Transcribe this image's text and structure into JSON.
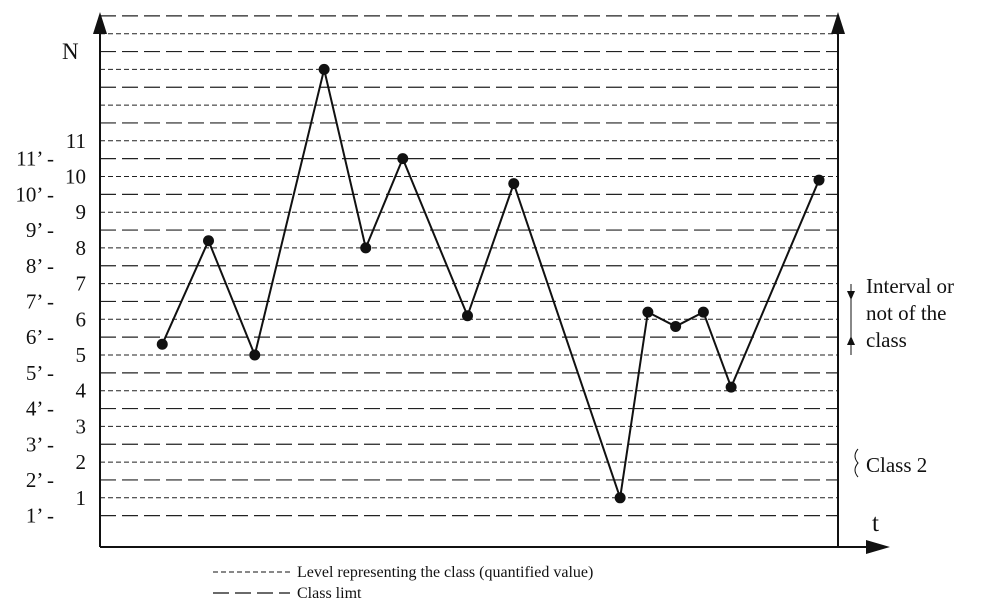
{
  "chart_data": {
    "type": "line",
    "title": "",
    "xlabel": "t",
    "ylabel": "N",
    "ylim": [
      0,
      14
    ],
    "grid": true,
    "y_ticks_class": [
      "1",
      "2",
      "3",
      "4",
      "5",
      "6",
      "7",
      "8",
      "9",
      "10",
      "11"
    ],
    "y_ticks_limit": [
      "1’ -",
      "2’ -",
      "3’ -",
      "4’ -",
      "5’ -",
      "6’ -",
      "7’ -",
      "8’ -",
      "9’ -",
      "10’ -",
      "11’ -"
    ],
    "class_levels": [
      1,
      2,
      3,
      4,
      5,
      6,
      7,
      8,
      9,
      10,
      11,
      12,
      13,
      14
    ],
    "class_limits": [
      0.5,
      1.5,
      2.5,
      3.5,
      4.5,
      5.5,
      6.5,
      7.5,
      8.5,
      9.5,
      10.5,
      11.5,
      12.5,
      13.5,
      14.5
    ],
    "series": [
      {
        "x": [
          1,
          2,
          3,
          4,
          5,
          6,
          7,
          8,
          9,
          10,
          11,
          12,
          13,
          14,
          15
        ],
        "values": [
          5.3,
          8.2,
          5.0,
          13.0,
          8.0,
          10.5,
          6.1,
          9.8,
          1.0,
          6.2,
          5.8,
          6.2,
          4.1,
          9.9,
          null
        ]
      }
    ],
    "series_x_positions": [
      1,
      2,
      3,
      4.5,
      5.4,
      6.2,
      7.6,
      8.6,
      10.9,
      11.5,
      12.1,
      12.7,
      13.3,
      15.2
    ]
  },
  "annotations": {
    "interval_label": [
      "Interval or",
      "not of the",
      "class"
    ],
    "class_label": "Class 2"
  },
  "legend": {
    "level_label": "Level representing the class (quantified value)",
    "limit_label": "Class limt"
  }
}
